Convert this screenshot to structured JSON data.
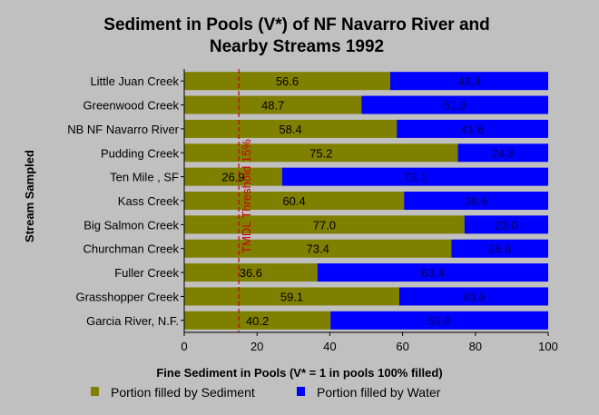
{
  "chart_data": {
    "type": "bar",
    "orientation": "horizontal",
    "stacked": true,
    "title_lines": [
      "Sediment in Pools (V*) of NF Navarro River and",
      "Nearby Streams 1992"
    ],
    "xlabel": "Fine Sediment in Pools (V* = 1 in pools 100% filled)",
    "ylabel": "Stream Sampled",
    "xlim": [
      0,
      100
    ],
    "xticks": [
      "0",
      "20",
      "40",
      "60",
      "80",
      "100"
    ],
    "categories": [
      "Little Juan Creek",
      "Greenwood Creek",
      "NB NF Navarro River",
      "Pudding Creek",
      "Ten Mile , SF",
      "Kass Creek",
      "Big Salmon Creek",
      "Churchman Creek",
      "Fuller Creek",
      "Grasshopper Creek",
      "Garcia River, N.F."
    ],
    "series": [
      {
        "name": "Portion filled by Sediment",
        "color": "#808000",
        "values": [
          56.6,
          48.7,
          58.4,
          75.2,
          26.9,
          60.4,
          77.0,
          73.4,
          36.6,
          59.1,
          40.2
        ],
        "labels": [
          "56.6",
          "48.7",
          "58.4",
          "75.2",
          "26.9",
          "60.4",
          "77.0",
          "73.4",
          "36.6",
          "59.1",
          "40.2"
        ]
      },
      {
        "name": "Portion filled by Water",
        "color": "#0000ff",
        "values": [
          43.4,
          51.3,
          41.6,
          24.8,
          73.1,
          39.6,
          23.0,
          26.6,
          63.4,
          40.9,
          59.8
        ],
        "labels": [
          "43.4",
          "51.3",
          "41.6",
          "24.8",
          "73.1",
          "39.6",
          "23.0",
          "26.6",
          "63.4",
          "40.9",
          "59.8"
        ]
      }
    ],
    "threshold": {
      "value": 15,
      "label": "TMDL Threshold 15%",
      "color": "#c80000"
    },
    "legend_position": "bottom",
    "grid": false
  }
}
